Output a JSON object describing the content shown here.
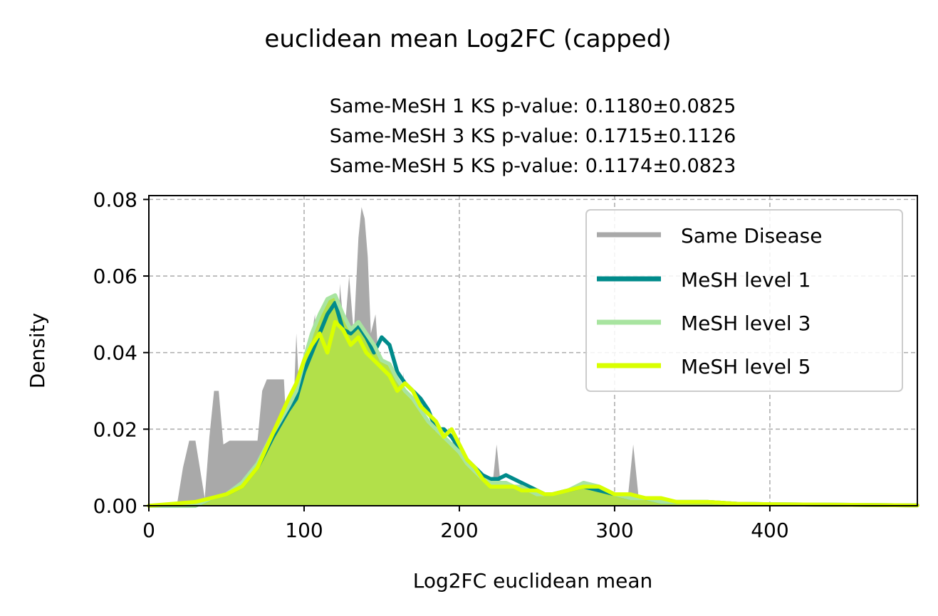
{
  "suptitle": "euclidean mean Log2FC (capped)",
  "subtitle_lines": [
    "Same-MeSH 1 KS p-value: 0.1180±0.0825",
    "Same-MeSH 3 KS p-value: 0.1715±0.1126",
    "Same-MeSH 5 KS p-value: 0.1174±0.0823"
  ],
  "chart_data": {
    "type": "area",
    "xlabel": "Log2FC euclidean mean",
    "ylabel": "Density",
    "xlim": [
      0,
      495
    ],
    "ylim": [
      0,
      0.081
    ],
    "xticks": [
      0,
      100,
      200,
      300,
      400
    ],
    "xtick_labels": [
      "0",
      "100",
      "200",
      "300",
      "400"
    ],
    "yticks": [
      0,
      0.02,
      0.04,
      0.06,
      0.08
    ],
    "ytick_labels": [
      "0.00",
      "0.02",
      "0.04",
      "0.06",
      "0.08"
    ],
    "grid": true,
    "legend_position": "upper-right",
    "series": [
      {
        "name": "Same Disease",
        "color": "#a9a9a9",
        "filled": true,
        "x": [
          0,
          18,
          22,
          26,
          30,
          36,
          39,
          42,
          45,
          48,
          52,
          55,
          58,
          62,
          66,
          70,
          73,
          76,
          79,
          83,
          87,
          91,
          95,
          98,
          101,
          103,
          105,
          107,
          109,
          112,
          115,
          118,
          121,
          123,
          126,
          129,
          132,
          135,
          137,
          139,
          141,
          143,
          146,
          149,
          152,
          155,
          158,
          161,
          164,
          167,
          170,
          173,
          176,
          180,
          184,
          188,
          192,
          196,
          200,
          204,
          208,
          212,
          216,
          220,
          224,
          228,
          232,
          236,
          240,
          244,
          248,
          252,
          256,
          260,
          264,
          268,
          272,
          276,
          280,
          284,
          288,
          292,
          296,
          300,
          304,
          308,
          312,
          316,
          320,
          324,
          328,
          332,
          336,
          340,
          344,
          348,
          352,
          356,
          360,
          364,
          368,
          372,
          376,
          380,
          384,
          388,
          392,
          396,
          400,
          420,
          440,
          460,
          480,
          495
        ],
        "y": [
          0,
          0,
          0.01,
          0.017,
          0.017,
          0.002,
          0.018,
          0.03,
          0.03,
          0.016,
          0.017,
          0.017,
          0.017,
          0.017,
          0.017,
          0.017,
          0.03,
          0.033,
          0.033,
          0.033,
          0.033,
          0.002,
          0.045,
          0.02,
          0.0,
          0.02,
          0.045,
          0.05,
          0.03,
          0.05,
          0.018,
          0.05,
          0.022,
          0.058,
          0.045,
          0.06,
          0.045,
          0.07,
          0.078,
          0.075,
          0.065,
          0.045,
          0.05,
          0.032,
          0.018,
          0.038,
          0.015,
          0.0,
          0.035,
          0.002,
          0.017,
          0.017,
          0.0,
          0.016,
          0.0,
          0.017,
          0.0,
          0.018,
          0.0,
          0.0,
          0.0,
          0.0,
          0.0,
          0.0,
          0.016,
          0.0,
          0.0,
          0.0,
          0.0,
          0.0,
          0.0,
          0.0,
          0.0,
          0.0,
          0.0,
          0.0,
          0.0,
          0.0,
          0.0,
          0.0,
          0.0,
          0.0,
          0.0,
          0.0,
          0.0,
          0.0,
          0.016,
          0.0,
          0.0,
          0.0,
          0.0,
          0.0,
          0.0,
          0.0,
          0.0,
          0.0,
          0.0,
          0.0,
          0.0,
          0.0,
          0.0,
          0.0,
          0.0,
          0.0,
          0.0,
          0.0,
          0.0,
          0.0,
          0.0,
          0.0,
          0.0,
          0.0,
          0.0,
          0.0
        ]
      },
      {
        "name": "MeSH level 1",
        "color": "#008b8b",
        "filled": false,
        "x": [
          0,
          30,
          40,
          50,
          60,
          70,
          80,
          90,
          95,
          100,
          105,
          110,
          115,
          120,
          125,
          130,
          135,
          140,
          145,
          150,
          155,
          160,
          165,
          170,
          175,
          180,
          185,
          190,
          195,
          200,
          205,
          210,
          215,
          220,
          225,
          230,
          235,
          240,
          245,
          250,
          255,
          260,
          270,
          280,
          290,
          300,
          310,
          320,
          330,
          340,
          350,
          360,
          380,
          400,
          430,
          460,
          495
        ],
        "y": [
          0,
          0.0,
          0.002,
          0.003,
          0.005,
          0.01,
          0.018,
          0.025,
          0.028,
          0.035,
          0.04,
          0.045,
          0.05,
          0.053,
          0.046,
          0.045,
          0.047,
          0.044,
          0.04,
          0.044,
          0.042,
          0.035,
          0.032,
          0.03,
          0.028,
          0.025,
          0.02,
          0.02,
          0.018,
          0.015,
          0.012,
          0.01,
          0.008,
          0.007,
          0.007,
          0.008,
          0.007,
          0.006,
          0.005,
          0.004,
          0.003,
          0.003,
          0.004,
          0.005,
          0.004,
          0.003,
          0.002,
          0.002,
          0.001,
          0.001,
          0.001,
          0.001,
          0.0005,
          0.0004,
          0.0003,
          0.0002,
          0.0001
        ]
      },
      {
        "name": "MeSH level 3",
        "color": "#a8e4a0",
        "filled": true,
        "x": [
          0,
          30,
          40,
          50,
          60,
          70,
          80,
          90,
          95,
          100,
          105,
          110,
          115,
          120,
          125,
          130,
          135,
          140,
          145,
          150,
          155,
          160,
          165,
          170,
          175,
          180,
          185,
          190,
          195,
          200,
          205,
          210,
          215,
          220,
          225,
          230,
          235,
          240,
          245,
          250,
          255,
          260,
          270,
          280,
          290,
          300,
          310,
          320,
          330,
          340,
          350,
          360,
          380,
          400,
          430,
          460,
          495
        ],
        "y": [
          0,
          0.0,
          0.002,
          0.003,
          0.006,
          0.011,
          0.019,
          0.026,
          0.03,
          0.038,
          0.045,
          0.05,
          0.054,
          0.055,
          0.05,
          0.046,
          0.048,
          0.045,
          0.042,
          0.038,
          0.037,
          0.033,
          0.03,
          0.028,
          0.025,
          0.022,
          0.02,
          0.018,
          0.016,
          0.014,
          0.011,
          0.009,
          0.007,
          0.006,
          0.006,
          0.006,
          0.005,
          0.005,
          0.004,
          0.003,
          0.003,
          0.003,
          0.004,
          0.006,
          0.005,
          0.003,
          0.002,
          0.002,
          0.001,
          0.001,
          0.001,
          0.001,
          0.0005,
          0.0004,
          0.0003,
          0.0002,
          0.0001
        ]
      },
      {
        "name": "MeSH level 5",
        "color": "#d9ff00",
        "filled": false,
        "x": [
          0,
          30,
          40,
          50,
          60,
          70,
          80,
          90,
          95,
          100,
          105,
          110,
          115,
          120,
          125,
          130,
          135,
          140,
          145,
          150,
          155,
          160,
          165,
          170,
          175,
          180,
          185,
          190,
          195,
          200,
          205,
          210,
          215,
          220,
          225,
          230,
          235,
          240,
          245,
          250,
          255,
          260,
          270,
          280,
          290,
          300,
          310,
          320,
          330,
          340,
          350,
          360,
          380,
          400,
          430,
          460,
          495
        ],
        "y": [
          0,
          0.001,
          0.002,
          0.003,
          0.005,
          0.01,
          0.019,
          0.028,
          0.032,
          0.038,
          0.042,
          0.045,
          0.04,
          0.048,
          0.046,
          0.042,
          0.044,
          0.04,
          0.038,
          0.036,
          0.034,
          0.03,
          0.032,
          0.03,
          0.026,
          0.024,
          0.022,
          0.018,
          0.02,
          0.016,
          0.012,
          0.01,
          0.007,
          0.005,
          0.005,
          0.005,
          0.005,
          0.004,
          0.004,
          0.004,
          0.003,
          0.003,
          0.004,
          0.005,
          0.005,
          0.003,
          0.003,
          0.002,
          0.002,
          0.001,
          0.001,
          0.001,
          0.0005,
          0.0004,
          0.0003,
          0.0002,
          0.0001
        ]
      }
    ]
  }
}
